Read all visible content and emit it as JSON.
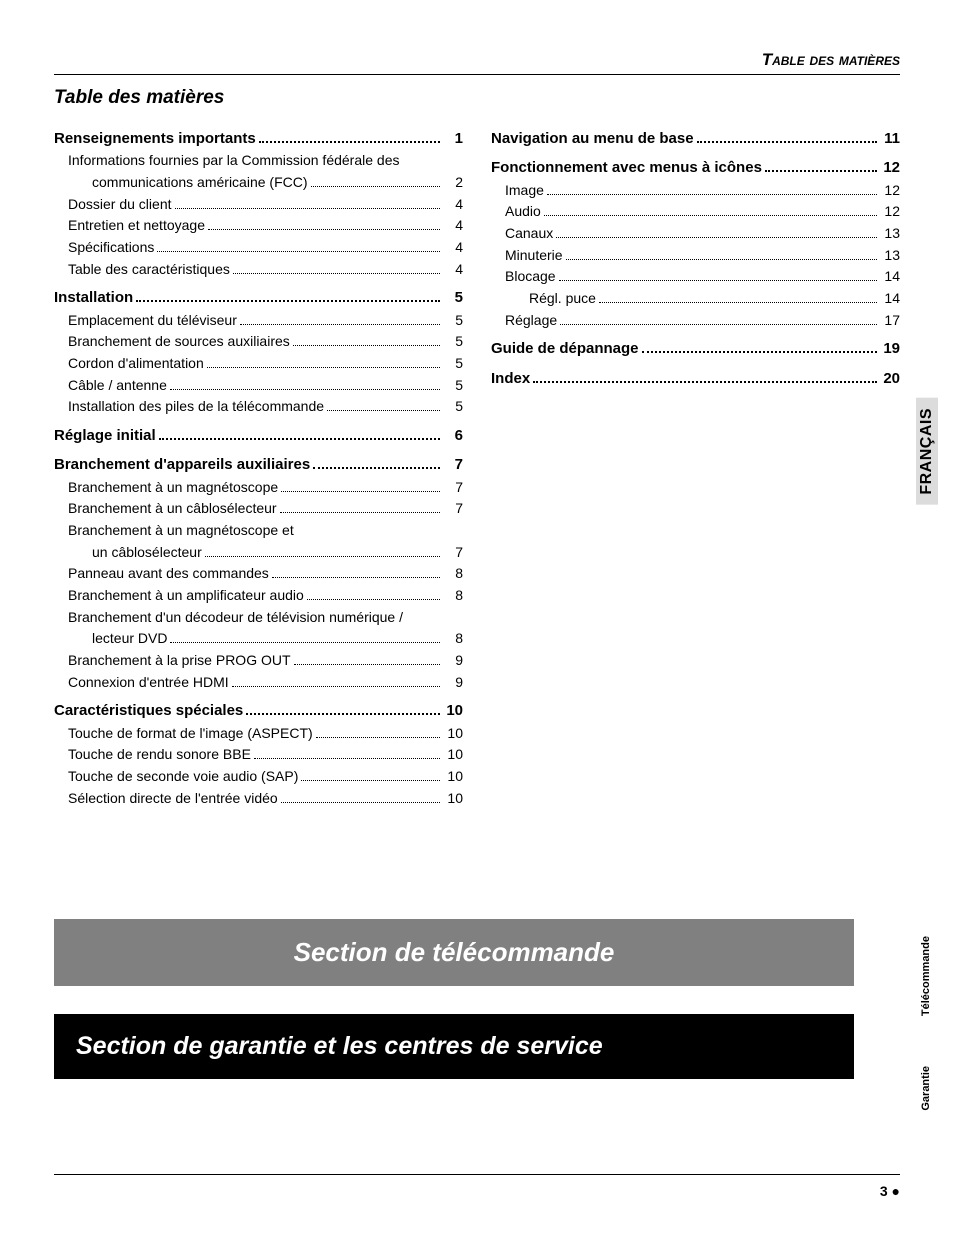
{
  "header": {
    "running_title": "Table des matières"
  },
  "toc_title": "Table des matières",
  "side_tabs": {
    "lang": "FRANÇAIS",
    "remote": "Télécommande",
    "warranty": "Garantie"
  },
  "banners": {
    "grey": "Section de télécommande",
    "black": "Section de garantie et les centres de service"
  },
  "footer": {
    "page": "3",
    "bullet": "●"
  },
  "colors": {
    "text": "#000000",
    "background": "#ffffff",
    "rule": "#000000",
    "banner_grey": "#808080",
    "banner_black": "#000000",
    "tab_lang_bg": "#dcdcdc"
  },
  "typography": {
    "body_family": "Arial, Helvetica, sans-serif",
    "toc_title_size_pt": 14,
    "level0_size_pt": 11,
    "level1_size_pt": 10,
    "banner_size_pt": 20
  },
  "col_left": [
    {
      "level": 0,
      "label": "Renseignements importants",
      "page": "1"
    },
    {
      "level": 1,
      "label": "Informations fournies par la Commission fédérale des",
      "wrap": true
    },
    {
      "level": 2,
      "cont": true,
      "label": "communications américaine (FCC)",
      "page": "2"
    },
    {
      "level": 1,
      "label": "Dossier du client",
      "page": "4"
    },
    {
      "level": 1,
      "label": "Entretien et nettoyage",
      "page": "4"
    },
    {
      "level": 1,
      "label": "Spécifications",
      "page": "4"
    },
    {
      "level": 1,
      "label": "Table des caractéristiques",
      "page": "4"
    },
    {
      "level": 0,
      "label": "Installation",
      "page": "5"
    },
    {
      "level": 1,
      "label": "Emplacement du téléviseur",
      "page": "5"
    },
    {
      "level": 1,
      "label": "Branchement de sources auxiliaires",
      "page": "5"
    },
    {
      "level": 1,
      "label": "Cordon d'alimentation",
      "page": "5"
    },
    {
      "level": 1,
      "label": "Câble / antenne",
      "page": "5"
    },
    {
      "level": 1,
      "label": "Installation des piles de la télécommande",
      "page": "5"
    },
    {
      "level": 0,
      "label": "Réglage initial",
      "page": "6"
    },
    {
      "level": 0,
      "label": "Branchement d'appareils auxiliaires",
      "page": "7"
    },
    {
      "level": 1,
      "label": "Branchement à un magnétoscope",
      "page": "7"
    },
    {
      "level": 1,
      "label": "Branchement à un câblosélecteur",
      "page": "7"
    },
    {
      "level": 1,
      "label": "Branchement à un magnétoscope et",
      "wrap": true
    },
    {
      "level": 2,
      "cont": true,
      "label": "un câblosélecteur",
      "page": "7"
    },
    {
      "level": 1,
      "label": "Panneau avant des commandes",
      "page": "8"
    },
    {
      "level": 1,
      "label": "Branchement à un amplificateur audio",
      "page": "8"
    },
    {
      "level": 1,
      "label": "Branchement d'un décodeur de télévision numérique /",
      "wrap": true
    },
    {
      "level": 2,
      "cont": true,
      "label": "lecteur DVD",
      "page": "8"
    },
    {
      "level": 1,
      "label": "Branchement à la prise PROG OUT",
      "page": "9"
    },
    {
      "level": 1,
      "label": "Connexion d'entrée HDMI",
      "page": "9"
    },
    {
      "level": 0,
      "label": "Caractéristiques spéciales",
      "page": "10"
    },
    {
      "level": 1,
      "label": "Touche de format de l'image (ASPECT)",
      "page": "10"
    },
    {
      "level": 1,
      "label": "Touche de rendu sonore BBE",
      "page": "10"
    },
    {
      "level": 1,
      "label": "Touche de seconde voie audio (SAP)",
      "page": "10"
    },
    {
      "level": 1,
      "label": "Sélection directe de l'entrée vidéo",
      "page": "10"
    }
  ],
  "col_right": [
    {
      "level": 0,
      "label": "Navigation au menu de base",
      "page": "11"
    },
    {
      "level": 0,
      "label": "Fonctionnement avec menus à icônes",
      "page": "12"
    },
    {
      "level": 1,
      "label": "Image",
      "page": "12"
    },
    {
      "level": 1,
      "label": "Audio",
      "page": "12"
    },
    {
      "level": 1,
      "label": "Canaux",
      "page": "13"
    },
    {
      "level": 1,
      "label": "Minuterie",
      "page": "13"
    },
    {
      "level": 1,
      "label": "Blocage",
      "page": "14"
    },
    {
      "level": 2,
      "label": "Régl. puce",
      "page": "14"
    },
    {
      "level": 1,
      "label": "Réglage",
      "page": "17"
    },
    {
      "level": 0,
      "label": "Guide de dépannage",
      "page": "19"
    },
    {
      "level": 0,
      "label": "Index",
      "page": "20"
    }
  ]
}
